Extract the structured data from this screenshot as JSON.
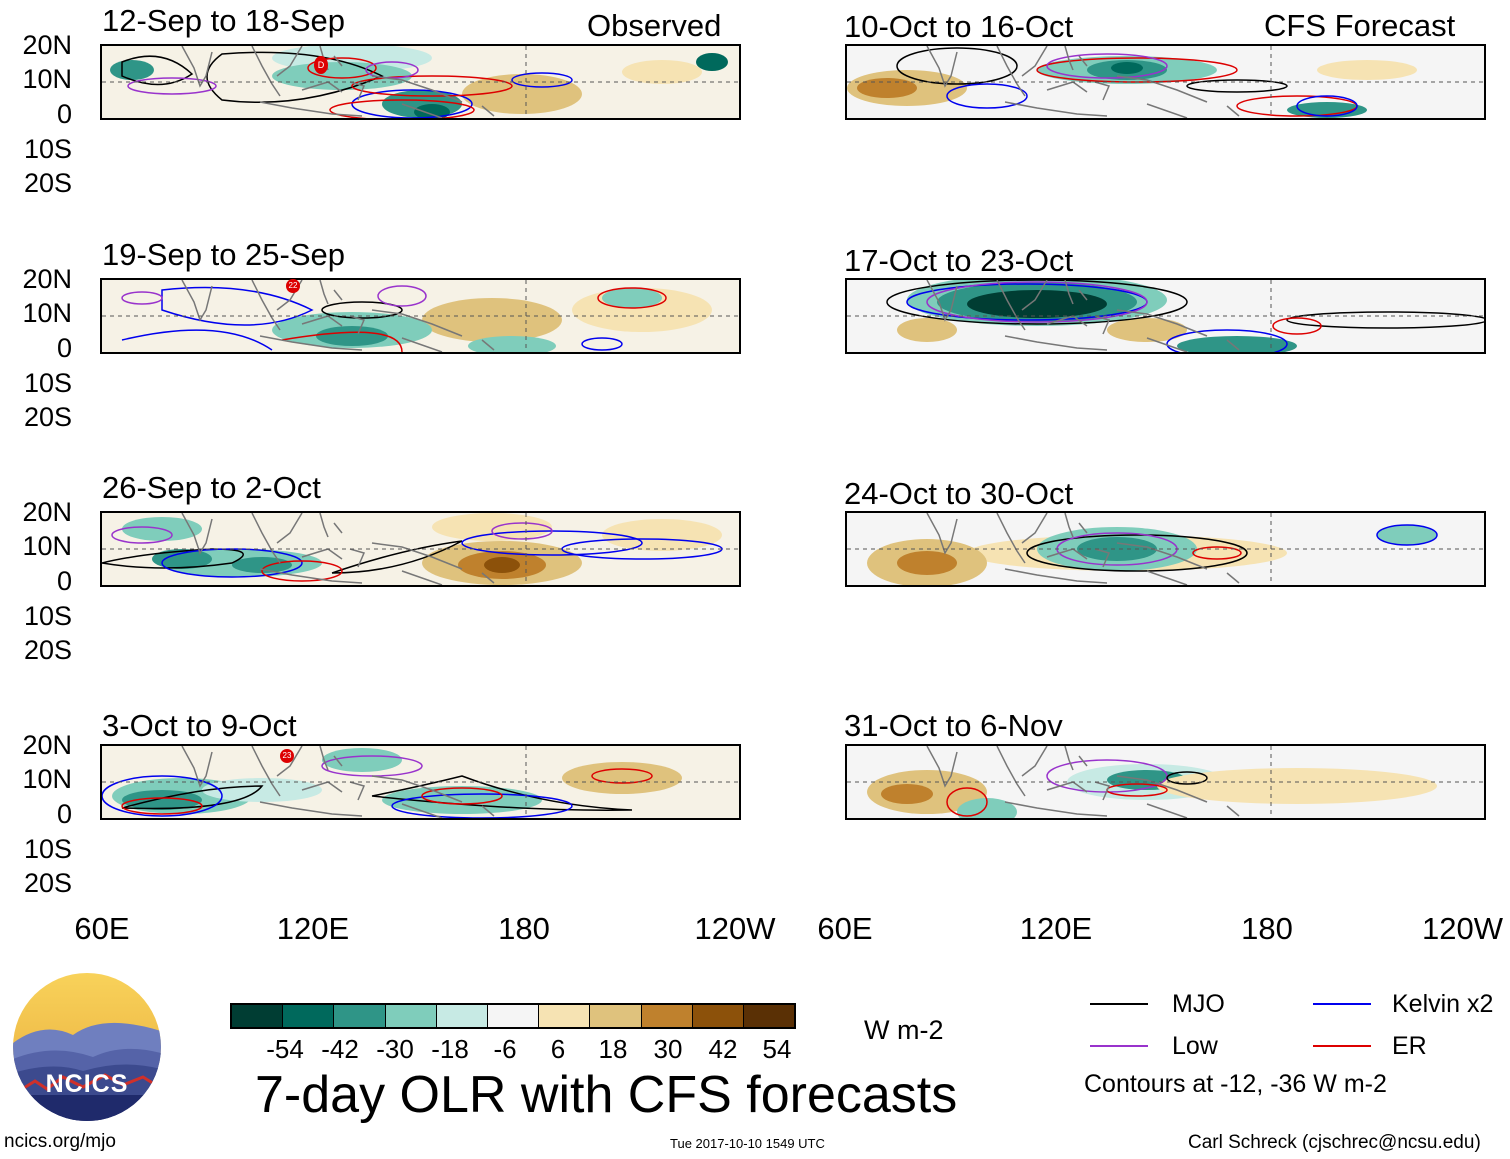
{
  "header": {
    "left_label": "Observed",
    "right_label": "CFS Forecast"
  },
  "panels": {
    "l1": {
      "title": "12-Sep to 18-Sep"
    },
    "l2": {
      "title": "19-Sep to 25-Sep"
    },
    "l3": {
      "title": "26-Sep to 2-Oct"
    },
    "l4": {
      "title": "3-Oct to 9-Oct"
    },
    "r1": {
      "title": "10-Oct to 16-Oct"
    },
    "r2": {
      "title": "17-Oct to 23-Oct"
    },
    "r3": {
      "title": "24-Oct to 30-Oct"
    },
    "r4": {
      "title": "31-Oct to 6-Nov"
    }
  },
  "storm_labels": {
    "s1": "D",
    "s2": "22",
    "s3": "23"
  },
  "axes": {
    "lat_labels": [
      "20N",
      "10N",
      "0",
      "10S",
      "20S"
    ],
    "lon_labels": [
      "60E",
      "120E",
      "180",
      "120W"
    ]
  },
  "colorbar": {
    "unit": "W m-2",
    "ticks": [
      "-54",
      "-42",
      "-30",
      "-18",
      "-6",
      "6",
      "18",
      "30",
      "42",
      "54"
    ],
    "colors": [
      "#003d33",
      "#00695c",
      "#2f9587",
      "#7fcdbb",
      "#c7eae4",
      "#f5f5f5",
      "#f6e3b3",
      "#dfc27d",
      "#bf812d",
      "#8c510a",
      "#5a3005"
    ]
  },
  "legend": {
    "mjo": "MJO",
    "low": "Low",
    "kelvin": "Kelvin x2",
    "er": "ER",
    "note": "Contours at -12, -36 W m-2",
    "colors": {
      "mjo": "#000000",
      "low": "#9933cc",
      "kelvin": "#0000ee",
      "er": "#dd0000"
    }
  },
  "main_title": "7-day OLR with CFS forecasts",
  "logo": {
    "text": "NCICS"
  },
  "footer": {
    "url": "ncics.org/mjo",
    "timestamp": "Tue 2017-10-10 1549 UTC",
    "author": "Carl Schreck (cjschrec@ncsu.edu)"
  }
}
